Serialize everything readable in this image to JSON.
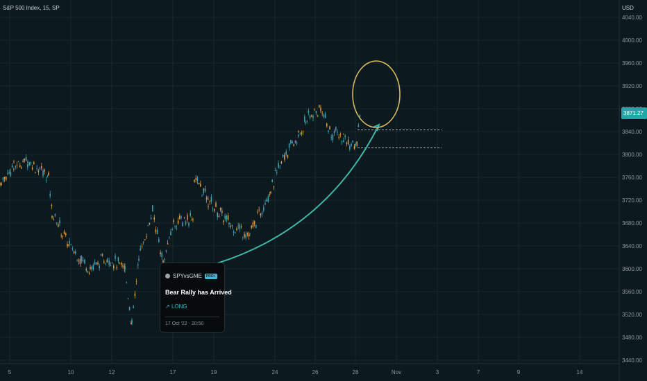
{
  "header": {
    "symbol": "S&P 500 Index, 15, SP"
  },
  "idea_card": {
    "author": "SPYvsGME",
    "badge": "PRO+",
    "title": "Bear Rally has Arrived",
    "direction": "LONG",
    "date": "17 Oct '22 · 20:50",
    "arrow_icon": "arrow-up-right-icon",
    "avatar_icon": "user-avatar-icon"
  },
  "colors": {
    "background": "#0c1a1f",
    "candle": "#d59a44",
    "candle_alt": "#3fa0b4",
    "curve": "#3fb6a6",
    "circle": "#d8b95b",
    "price_tag": "#22a7a8"
  },
  "chart_data": {
    "type": "candlestick",
    "currency": "USD",
    "last_price_label": "3871.27",
    "last_price": 3871.27,
    "ylim": [
      3440,
      4040
    ],
    "y_ticks": [
      "4040.00",
      "4000.00",
      "3960.00",
      "3920.00",
      "3880.00",
      "3840.00",
      "3800.00",
      "3760.00",
      "3720.00",
      "3680.00",
      "3640.00",
      "3600.00",
      "3560.00",
      "3520.00",
      "3480.00",
      "3440.00"
    ],
    "x_ticks": [
      "5",
      "10",
      "12",
      "17",
      "19",
      "24",
      "26",
      "28",
      "Nov",
      "3",
      "7",
      "9",
      "14"
    ],
    "grid": true,
    "price_path": [
      {
        "x": "5",
        "y": 3750
      },
      {
        "x": "6",
        "y": 3790
      },
      {
        "x": "7",
        "y": 3760
      },
      {
        "x": "10",
        "y": 3640
      },
      {
        "x": "11",
        "y": 3600
      },
      {
        "x": "12",
        "y": 3620
      },
      {
        "x": "13",
        "y": 3500
      },
      {
        "x": "13b",
        "y": 3700
      },
      {
        "x": "14",
        "y": 3600
      },
      {
        "x": "17",
        "y": 3680
      },
      {
        "x": "18",
        "y": 3720
      },
      {
        "x": "19",
        "y": 3680
      },
      {
        "x": "20",
        "y": 3670
      },
      {
        "x": "21",
        "y": 3740
      },
      {
        "x": "24",
        "y": 3800
      },
      {
        "x": "25",
        "y": 3860
      },
      {
        "x": "26",
        "y": 3880
      },
      {
        "x": "27",
        "y": 3830
      },
      {
        "x": "28",
        "y": 3871
      }
    ],
    "annotations": {
      "levels": [
        3843,
        3812
      ],
      "curve": "upward arc from 19 to 28",
      "circle": "highlight near 3920"
    }
  }
}
